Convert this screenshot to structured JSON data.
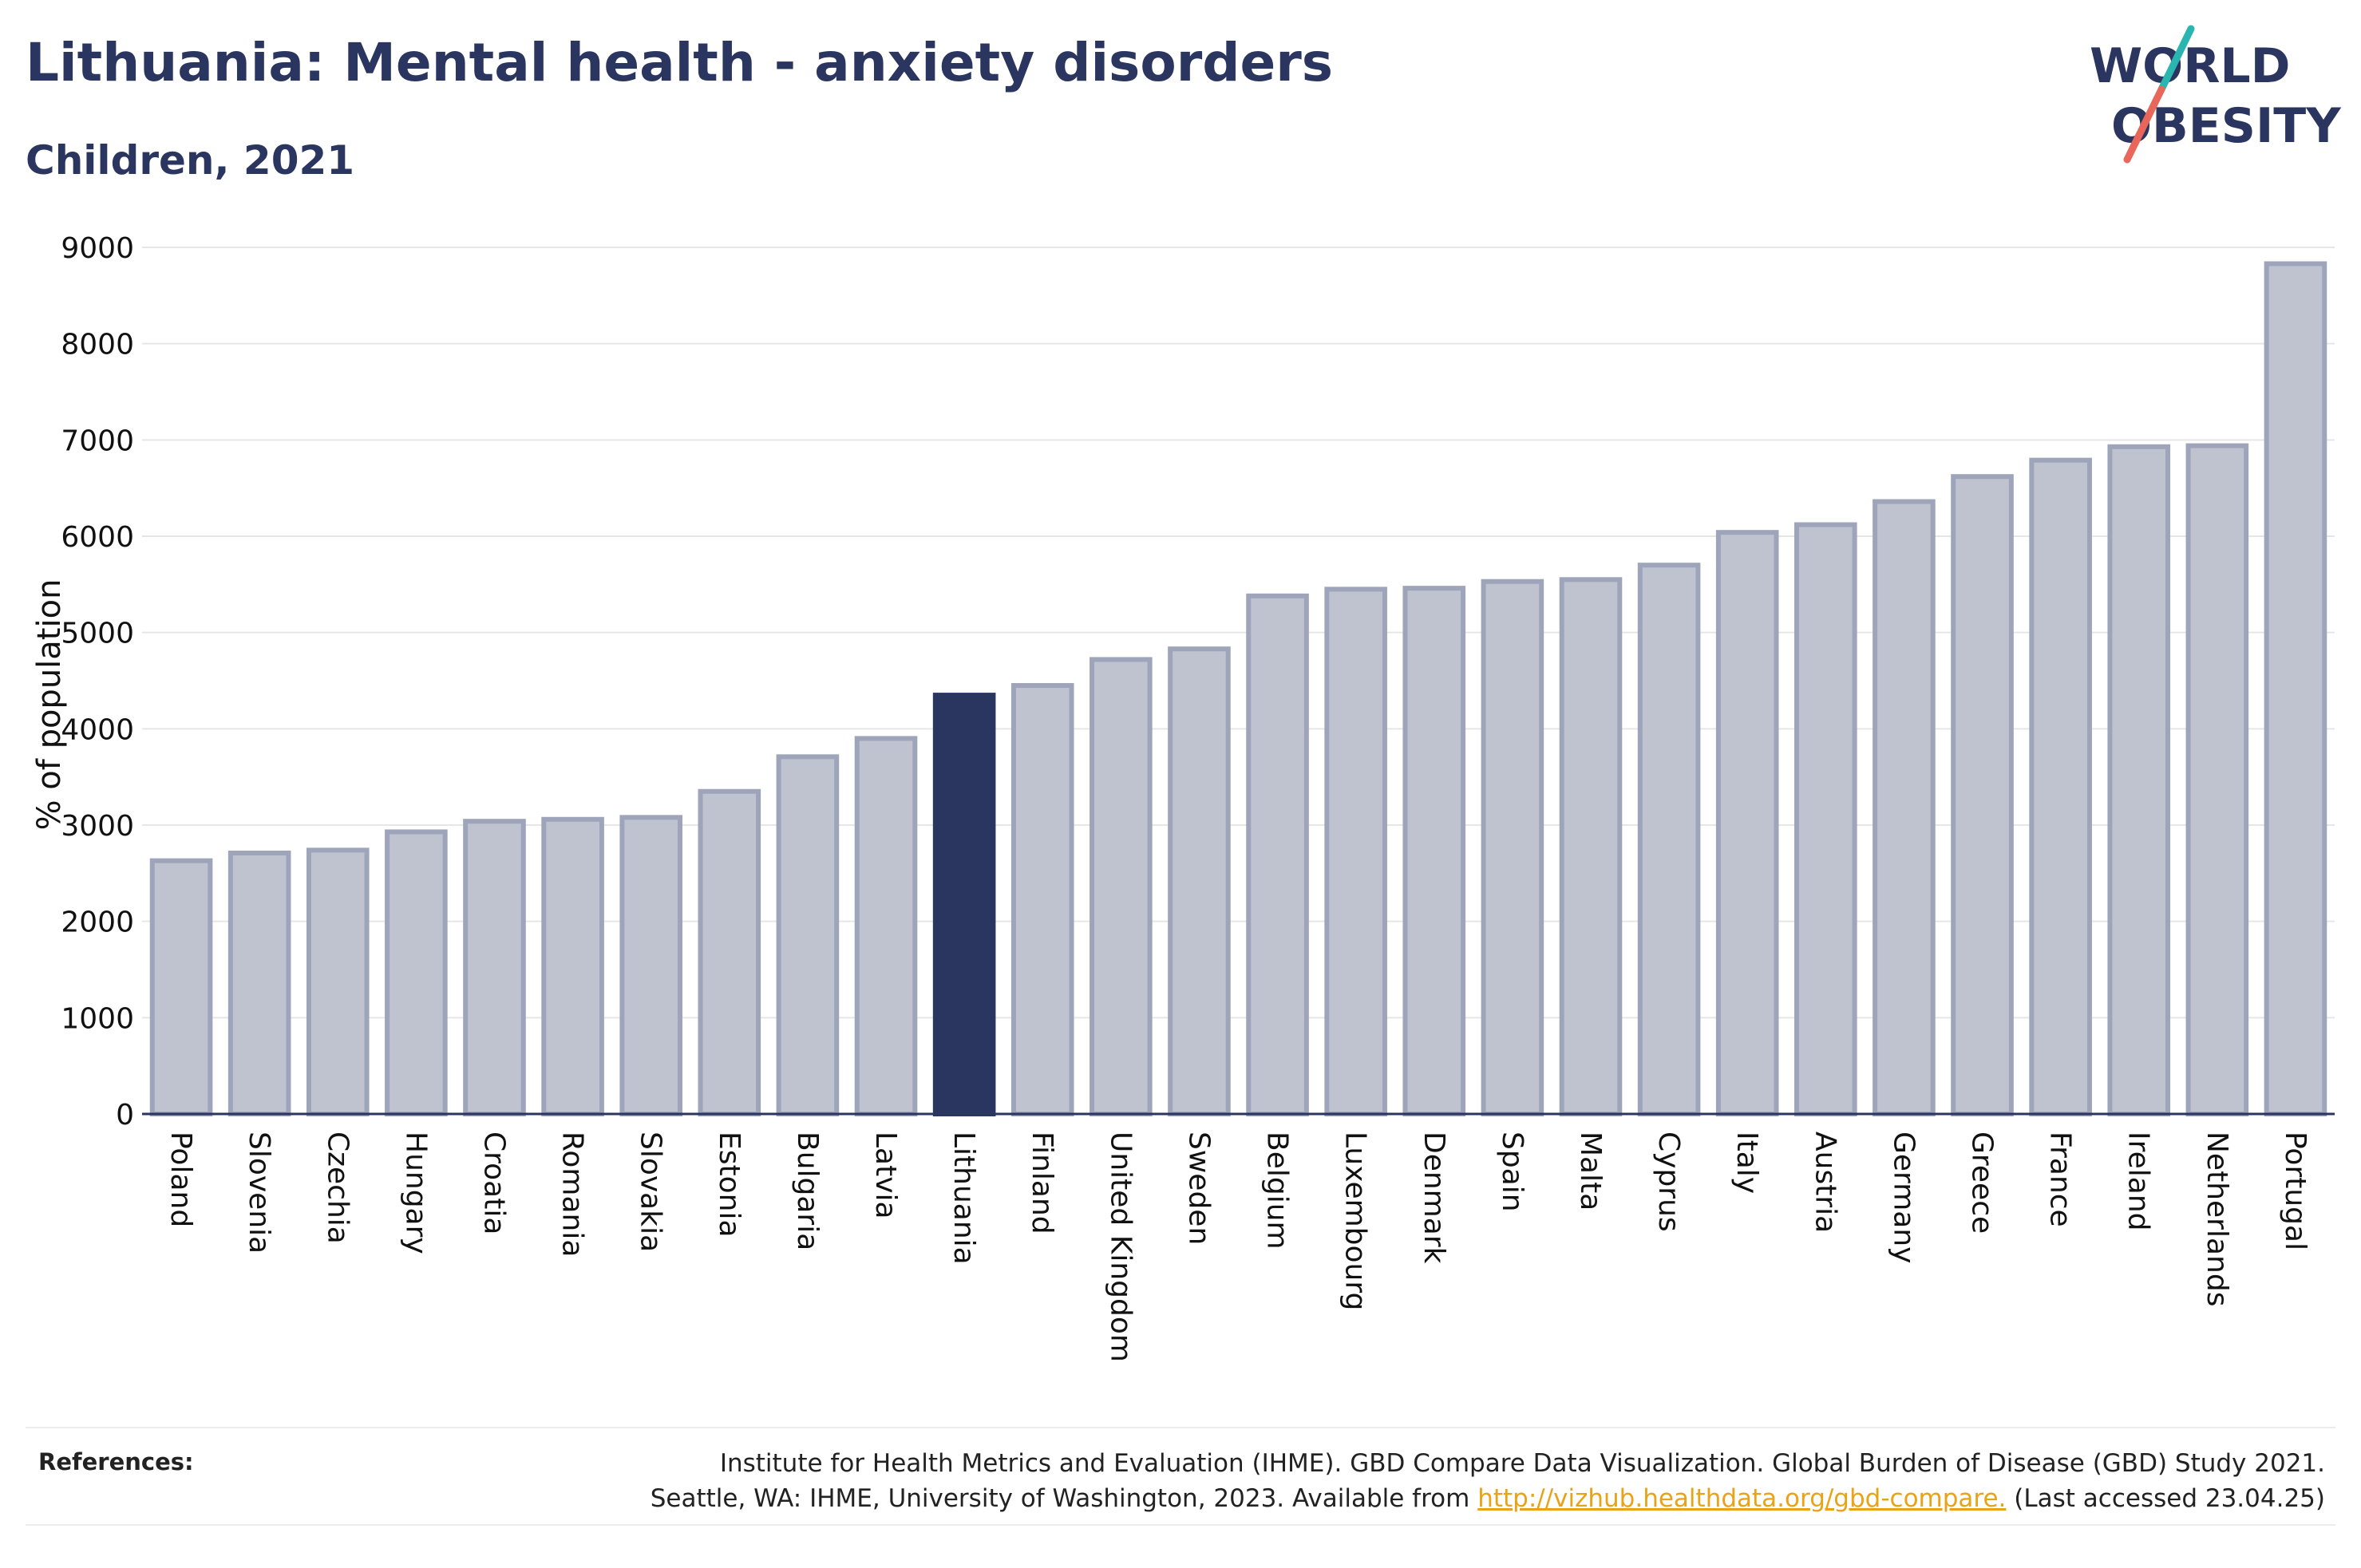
{
  "header": {
    "title": "Lithuania: Mental health - anxiety disorders",
    "subtitle": "Children, 2021"
  },
  "logo": {
    "line1": "WORLD",
    "line2": "OBESITY",
    "accent_colors": [
      "#2bb5b0",
      "#e8665a"
    ]
  },
  "chart_data": {
    "type": "bar",
    "title": "Lithuania: Mental health - anxiety disorders",
    "subtitle": "Children, 2021",
    "xlabel": "",
    "ylabel": "% of population",
    "ylim": [
      0,
      9000
    ],
    "yticks": [
      0,
      1000,
      2000,
      3000,
      4000,
      5000,
      6000,
      7000,
      8000,
      9000
    ],
    "grid": true,
    "highlight": "Lithuania",
    "colors": {
      "highlight": "#2a3560",
      "bar_fill": "#bfc3d0",
      "bar_edge": "#9ea4ba",
      "grid": "#e6e6e6",
      "axis": "#2a3560"
    },
    "categories": [
      "Poland",
      "Slovenia",
      "Czechia",
      "Hungary",
      "Croatia",
      "Romania",
      "Slovakia",
      "Estonia",
      "Bulgaria",
      "Latvia",
      "Lithuania",
      "Finland",
      "United Kingdom",
      "Sweden",
      "Belgium",
      "Luxembourg",
      "Denmark",
      "Spain",
      "Malta",
      "Cyprus",
      "Italy",
      "Austria",
      "Germany",
      "Greece",
      "France",
      "Ireland",
      "Netherlands",
      "Portugal"
    ],
    "values": [
      2630,
      2710,
      2740,
      2930,
      3040,
      3060,
      3080,
      3350,
      3710,
      3900,
      4350,
      4450,
      4720,
      4830,
      5380,
      5450,
      5460,
      5530,
      5550,
      5700,
      6040,
      6120,
      6360,
      6620,
      6790,
      6930,
      6940,
      8830
    ]
  },
  "references": {
    "label": "References:",
    "line1": "Institute for Health Metrics and Evaluation (IHME). GBD Compare Data Visualization. Global Burden of Disease (GBD) Study 2021.",
    "line2_prefix": "Seattle, WA: IHME, University of Washington, 2023. Available from ",
    "link": "http://vizhub.healthdata.org/gbd-compare.",
    "line2_suffix": " (Last accessed 23.04.25)"
  }
}
